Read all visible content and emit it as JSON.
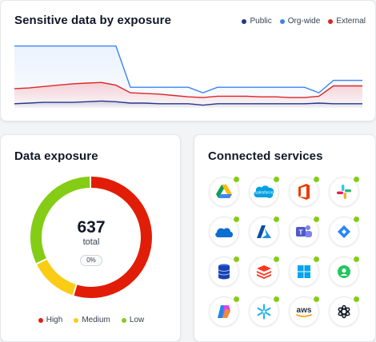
{
  "exposure_chart": {
    "title": "Sensitive data by exposure",
    "legend": [
      {
        "label": "Public",
        "color": "#1e3a8a"
      },
      {
        "label": "Org-wide",
        "color": "#3b82f6"
      },
      {
        "label": "External",
        "color": "#dc2626"
      }
    ]
  },
  "chart_data": {
    "type": "area",
    "title": "Sensitive data by exposure",
    "x": [
      0,
      1,
      2,
      3,
      4,
      5,
      6,
      7,
      8,
      9,
      10,
      11,
      12,
      13,
      14,
      15,
      16,
      17,
      18,
      19,
      20,
      21,
      22,
      23,
      24
    ],
    "series": [
      {
        "name": "Org-wide",
        "values": [
          90,
          90,
          90,
          90,
          90,
          90,
          90,
          90,
          30,
          30,
          30,
          30,
          30,
          22,
          30,
          30,
          30,
          30,
          30,
          30,
          30,
          22,
          40,
          40,
          40
        ]
      },
      {
        "name": "External",
        "values": [
          28,
          29,
          31,
          33,
          35,
          36,
          37,
          33,
          22,
          21,
          20,
          18,
          16,
          15,
          17,
          17,
          17,
          16,
          16,
          15,
          15,
          17,
          32,
          32,
          32
        ]
      },
      {
        "name": "Public",
        "values": [
          6,
          7,
          8,
          8,
          8,
          9,
          10,
          9,
          7,
          7,
          6,
          6,
          6,
          4,
          6,
          6,
          6,
          6,
          6,
          6,
          6,
          7,
          6,
          6,
          6
        ]
      }
    ],
    "ylim": [
      0,
      100
    ]
  },
  "donut": {
    "title": "Data exposure",
    "total_value": "637",
    "total_label": "total",
    "badge": "0%",
    "segments": [
      {
        "label": "High",
        "value": 55,
        "color": "#e11d07"
      },
      {
        "label": "Medium",
        "value": 13,
        "color": "#facc15"
      },
      {
        "label": "Low",
        "value": 32,
        "color": "#84cc16"
      }
    ]
  },
  "services": {
    "title": "Connected services",
    "items": [
      {
        "name": "google-drive-icon"
      },
      {
        "name": "salesforce-icon",
        "label": "salesforce"
      },
      {
        "name": "office-icon"
      },
      {
        "name": "slack-icon"
      },
      {
        "name": "onedrive-icon"
      },
      {
        "name": "azure-icon"
      },
      {
        "name": "teams-icon"
      },
      {
        "name": "jira-icon"
      },
      {
        "name": "database-icon"
      },
      {
        "name": "databricks-icon"
      },
      {
        "name": "windows-icon"
      },
      {
        "name": "circle-app-icon"
      },
      {
        "name": "copilot-icon"
      },
      {
        "name": "snowflake-icon"
      },
      {
        "name": "aws-icon",
        "label": "aws"
      },
      {
        "name": "openai-icon"
      }
    ],
    "status_color": "#84cc16"
  }
}
